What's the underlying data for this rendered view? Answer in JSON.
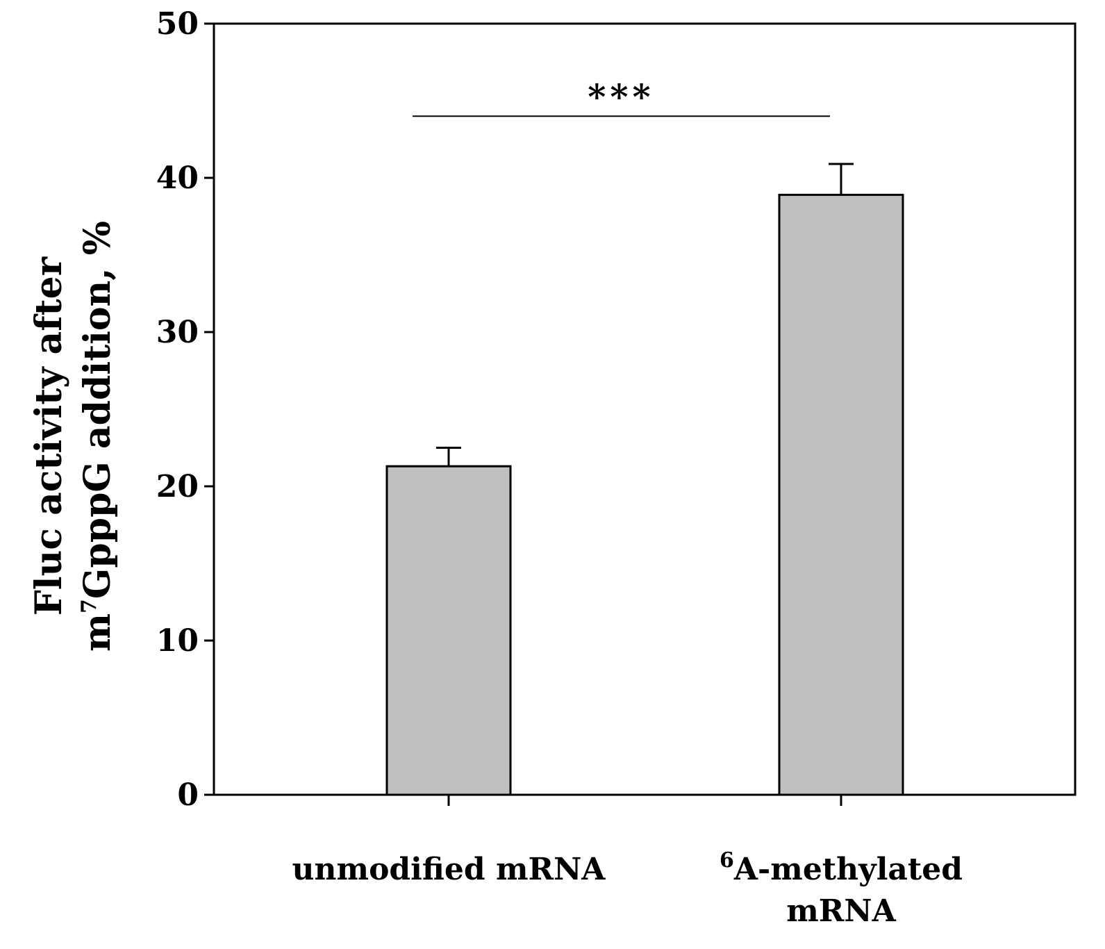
{
  "chart_data": {
    "type": "bar",
    "title": "",
    "categories": [
      "unmodified mRNA",
      "6A-methylated mRNA"
    ],
    "category_labels": [
      {
        "lines": [
          {
            "sup": "",
            "text": "unmodified mRNA"
          }
        ]
      },
      {
        "lines": [
          {
            "sup": "6",
            "text": "A-methylated"
          },
          {
            "sup": "",
            "text": "mRNA"
          }
        ]
      }
    ],
    "values": [
      21.3,
      38.9
    ],
    "error_upper": [
      1.2,
      2.0
    ],
    "ylabel_line1": "Fluc activity after",
    "ylabel_line2_prefix": "m",
    "ylabel_line2_sup": "7",
    "ylabel_line2_suffix": "GpppG addition, %",
    "xlabel": "",
    "ylim": [
      0,
      50
    ],
    "yticks": [
      0,
      10,
      20,
      30,
      40,
      50
    ],
    "grid": false,
    "bar_color": "#c0c0c0",
    "significance": {
      "label": "***",
      "y": 44,
      "between": [
        0,
        1
      ]
    }
  }
}
